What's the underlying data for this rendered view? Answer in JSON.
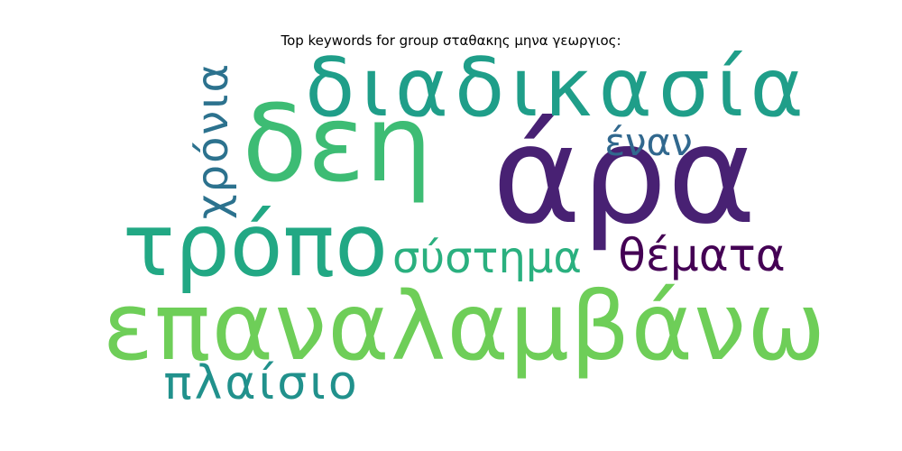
{
  "chart_data": {
    "type": "wordcloud",
    "title": "Top keywords for group σταθακης μηνα γεωργιος:",
    "words": [
      {
        "text": "επαναλαμβάνω",
        "weight": 1.0,
        "color": "#6ece58"
      },
      {
        "text": "άρα",
        "weight": 0.97,
        "color": "#482173"
      },
      {
        "text": "δεη",
        "weight": 0.82,
        "color": "#3dbc74"
      },
      {
        "text": "τρόπο",
        "weight": 0.74,
        "color": "#22a884"
      },
      {
        "text": "διαδικασία",
        "weight": 0.64,
        "color": "#1f9e89"
      },
      {
        "text": "σύστημα",
        "weight": 0.44,
        "color": "#2ab07f"
      },
      {
        "text": "θέματα",
        "weight": 0.43,
        "color": "#440154"
      },
      {
        "text": "πλαίσιο",
        "weight": 0.43,
        "color": "#21918c"
      },
      {
        "text": "χρόνια",
        "weight": 0.4,
        "color": "#2c728e"
      },
      {
        "text": "έναν",
        "weight": 0.36,
        "color": "#31688e"
      }
    ]
  }
}
